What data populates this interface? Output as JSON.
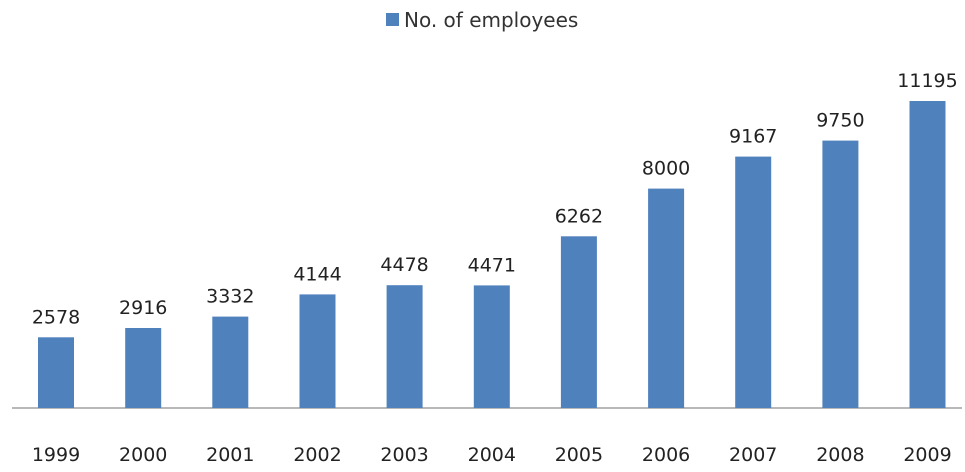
{
  "chart_data": {
    "type": "bar",
    "title": "",
    "xlabel": "",
    "ylabel": "",
    "legend": {
      "position": "top-center",
      "entries": [
        "No. of employees"
      ]
    },
    "categories": [
      "1999",
      "2000",
      "2001",
      "2002",
      "2003",
      "2004",
      "2005",
      "2006",
      "2007",
      "2008",
      "2009"
    ],
    "series": [
      {
        "name": "No. of employees",
        "values": [
          2578,
          2916,
          3332,
          4144,
          4478,
          4471,
          6262,
          8000,
          9167,
          9750,
          11195
        ],
        "color": "#4f81bd"
      }
    ],
    "data_labels": [
      "2578",
      "2916",
      "3332",
      "4144",
      "4478",
      "4471",
      "6262",
      "8000",
      "9167",
      "9750",
      "11195"
    ],
    "ylim": [
      0,
      11195
    ],
    "grid": false
  }
}
